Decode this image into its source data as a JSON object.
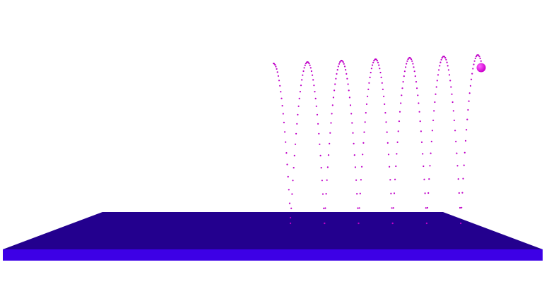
{
  "scene": {
    "background": "#ffffff",
    "floor": {
      "top_color": "#23008e",
      "front_color": "#3d00e6"
    },
    "trail": {
      "color": "#c000c8",
      "bounces": 6,
      "points_per_arc": 42
    },
    "ball": {
      "color": "#cc00cc",
      "highlight": "#ff66ff"
    }
  }
}
